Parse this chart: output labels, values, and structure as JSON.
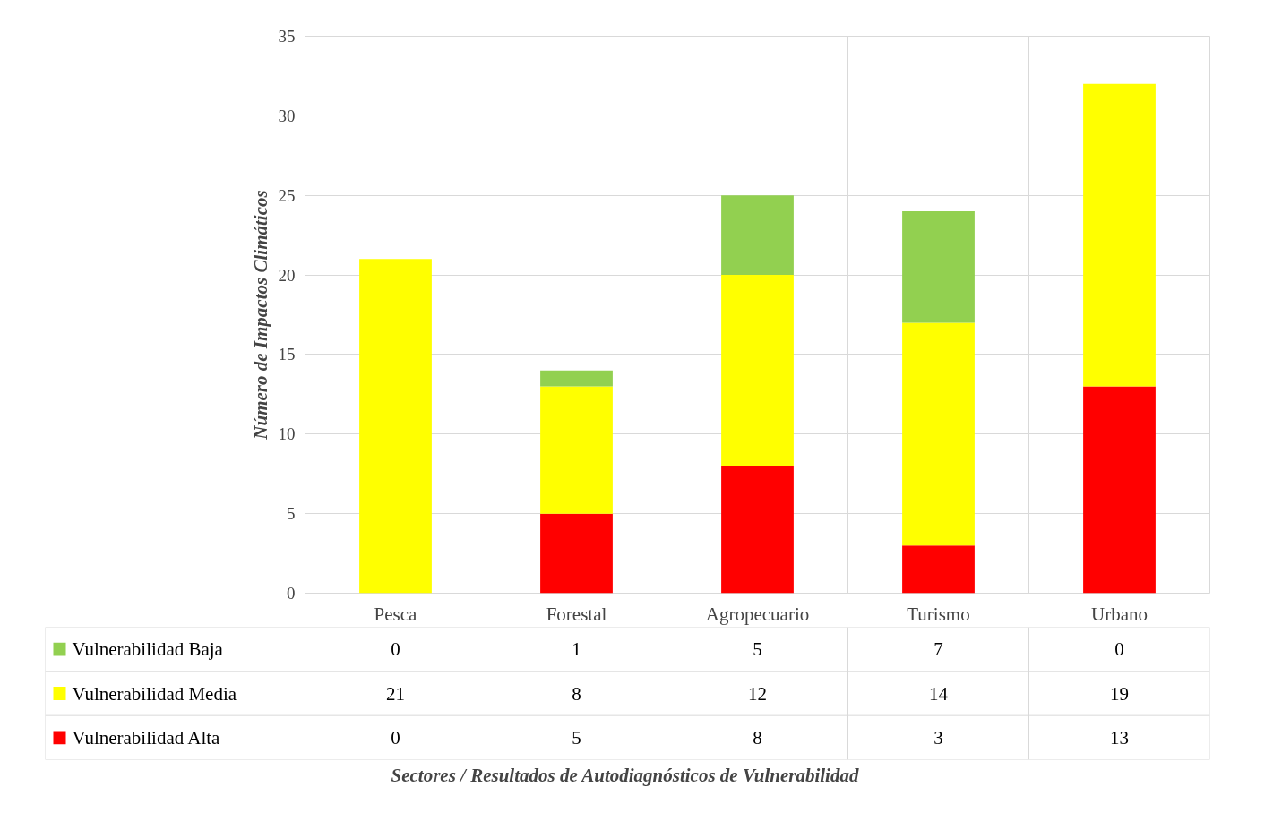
{
  "chart_data": {
    "type": "bar",
    "stacked": true,
    "annotations": [
      "Sectores  / Resultados de Autodiagnósticos de Vulnerabilidad"
    ],
    "ylabel": "Número de Impactos Climáticos",
    "categories": [
      "Pesca",
      "Forestal",
      "Agropecuario",
      "Turismo",
      "Urbano"
    ],
    "series": [
      {
        "name": "Vulnerabilidad Alta",
        "color": "#ff0000",
        "values": [
          0,
          5,
          8,
          3,
          13
        ]
      },
      {
        "name": "Vulnerabilidad Media",
        "color": "#ffff00",
        "values": [
          21,
          8,
          12,
          14,
          19
        ]
      },
      {
        "name": "Vulnerabilidad Baja",
        "color": "#92d050",
        "values": [
          0,
          1,
          5,
          7,
          0
        ]
      }
    ],
    "ylim": [
      0,
      35
    ],
    "yticks": [
      0,
      5,
      10,
      15,
      20,
      25,
      30,
      35
    ],
    "grid": true,
    "legend": "bottom",
    "data_labels": true
  }
}
